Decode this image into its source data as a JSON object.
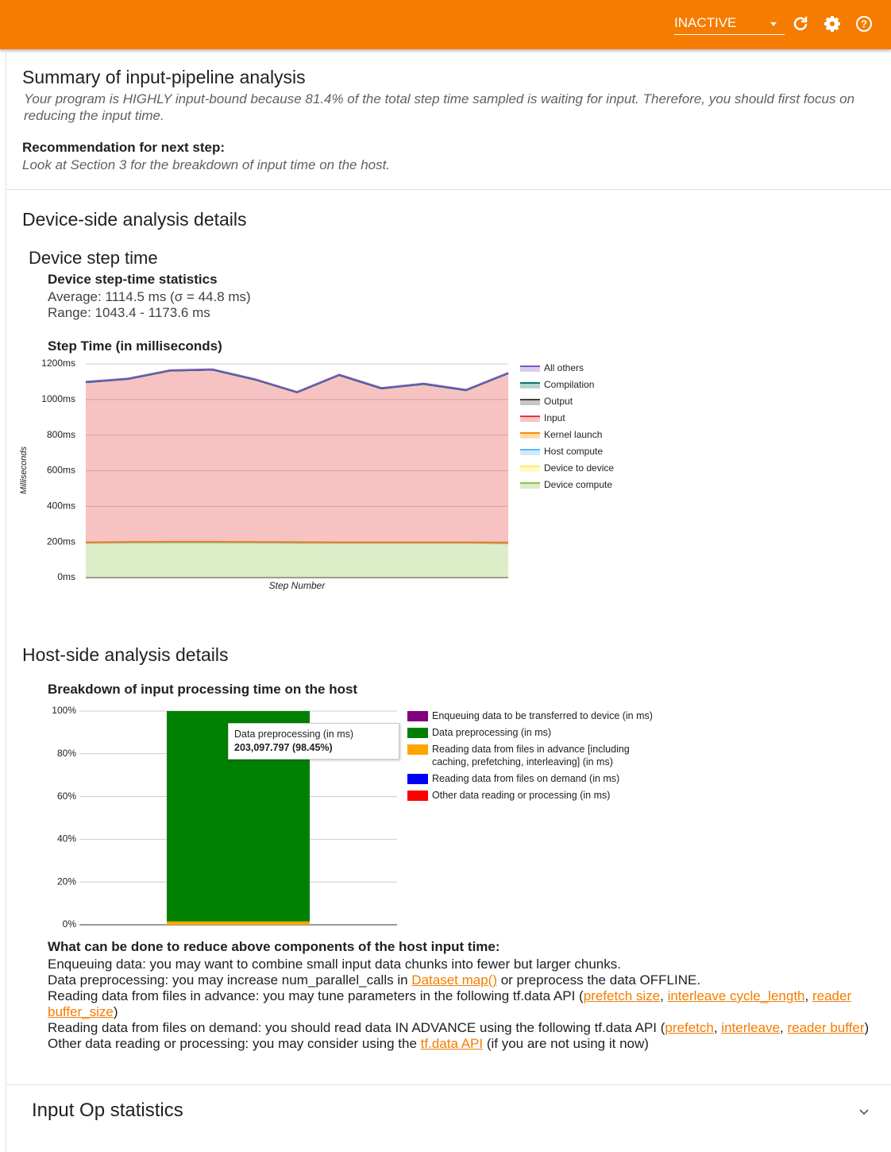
{
  "toolbar": {
    "status": "INACTIVE"
  },
  "summary": {
    "title": "Summary of input-pipeline analysis",
    "text": "Your program is HIGHLY input-bound because 81.4% of the total step time sampled is waiting for input. Therefore, you should first focus on reducing the input time.",
    "recommendation_label": "Recommendation for next step:",
    "recommendation": "Look at Section 3 for the breakdown of input time on the host."
  },
  "device": {
    "title": "Device-side analysis details",
    "subtitle": "Device step time",
    "stats_title": "Device step-time statistics",
    "average": "Average: 1114.5 ms (σ = 44.8 ms)",
    "range": "Range: 1043.4 - 1173.6 ms"
  },
  "host": {
    "title": "Host-side analysis details",
    "advice_title": "What can be done to reduce above components of the host input time:",
    "advice": [
      [
        {
          "text": "Enqueuing data: you may want to combine small input data chunks into fewer but larger chunks."
        }
      ],
      [
        {
          "text": "Data preprocessing: you may increase num_parallel_calls in "
        },
        {
          "link": "Dataset map()"
        },
        {
          "text": " or preprocess the data OFFLINE."
        }
      ],
      [
        {
          "text": "Reading data from files in advance: you may tune parameters in the following tf.data API ("
        },
        {
          "link": "prefetch size"
        },
        {
          "text": ", "
        },
        {
          "link": "interleave cycle_length"
        },
        {
          "text": ", "
        },
        {
          "link": "reader buffer_size"
        },
        {
          "text": ")"
        }
      ],
      [
        {
          "text": "Reading data from files on demand: you should read data IN ADVANCE using the following tf.data API ("
        },
        {
          "link": "prefetch"
        },
        {
          "text": ", "
        },
        {
          "link": "interleave"
        },
        {
          "text": ", "
        },
        {
          "link": "reader buffer"
        },
        {
          "text": ")"
        }
      ],
      [
        {
          "text": "Other data reading or processing: you may consider using the "
        },
        {
          "link": "tf.data API"
        },
        {
          "text": " (if you are not using it now)"
        }
      ]
    ]
  },
  "footer": {
    "title": "Input Op statistics"
  },
  "chart_data": [
    {
      "type": "area",
      "stacked": true,
      "title": "Step Time (in milliseconds)",
      "y_label": "Milliseconds",
      "x_label": "Step Number",
      "categories": [
        null,
        null,
        null,
        null,
        null,
        null,
        null,
        null,
        null,
        null,
        null
      ],
      "ylim": [
        0,
        1200
      ],
      "yticks": [
        {
          "value": 0,
          "label": "0ms"
        },
        {
          "value": 200,
          "label": "200ms"
        },
        {
          "value": 400,
          "label": "400ms"
        },
        {
          "value": 600,
          "label": "600ms"
        },
        {
          "value": 800,
          "label": "800ms"
        },
        {
          "value": 1000,
          "label": "1000ms"
        },
        {
          "value": 1200,
          "label": "1200ms"
        }
      ],
      "grid": true,
      "legend": "right",
      "series": [
        {
          "name": "All others",
          "color": "#7e57c2",
          "values": [
            3,
            3,
            3,
            3,
            3,
            3,
            3,
            3,
            3,
            3,
            3
          ]
        },
        {
          "name": "Compilation",
          "color": "#00796b",
          "values": [
            0,
            0,
            0,
            0,
            0,
            0,
            0,
            0,
            0,
            0,
            0
          ]
        },
        {
          "name": "Output",
          "color": "#424242",
          "values": [
            0,
            0,
            0,
            0,
            0,
            0,
            0,
            0,
            0,
            0,
            0
          ]
        },
        {
          "name": "Input",
          "color": "#e53935",
          "values": [
            899,
            915,
            961,
            966,
            912,
            841,
            939,
            864,
            889,
            854,
            951
          ]
        },
        {
          "name": "Kernel launch",
          "color": "#fb8c00",
          "values": [
            3,
            3,
            3,
            3,
            3,
            3,
            3,
            3,
            3,
            3,
            3
          ]
        },
        {
          "name": "Host compute",
          "color": "#64b5f6",
          "values": [
            0,
            0,
            0,
            0,
            0,
            0,
            0,
            0,
            0,
            0,
            0
          ]
        },
        {
          "name": "Device to device",
          "color": "#ffee58",
          "values": [
            0,
            0,
            0,
            0,
            0,
            0,
            0,
            0,
            0,
            0,
            0
          ]
        },
        {
          "name": "Device compute",
          "color": "#8bc34a",
          "values": [
            195,
            197,
            198,
            198,
            197,
            196,
            195,
            195,
            195,
            195,
            193
          ]
        }
      ]
    },
    {
      "type": "bar",
      "stacked": true,
      "title": "Breakdown of input processing time on the host",
      "categories": [
        null
      ],
      "ylim": [
        0,
        100
      ],
      "yticks": [
        {
          "value": 0,
          "label": "0%"
        },
        {
          "value": 20,
          "label": "20%"
        },
        {
          "value": 40,
          "label": "40%"
        },
        {
          "value": 60,
          "label": "60%"
        },
        {
          "value": 80,
          "label": "80%"
        },
        {
          "value": 100,
          "label": "100%"
        }
      ],
      "grid": true,
      "legend": "right",
      "series": [
        {
          "name": "Enqueuing data to be transferred to device (in ms)",
          "color": "#800080",
          "values": [
            0
          ]
        },
        {
          "name": "Data preprocessing (in ms)",
          "color": "#008000",
          "values": [
            98.45
          ],
          "value_labels": [
            "203,097.797 (98.45%)"
          ]
        },
        {
          "name": "Reading data from files in advance [including caching, prefetching, interleaving] (in ms)",
          "color": "#ffa500",
          "values": [
            1.55
          ]
        },
        {
          "name": "Reading data from files on demand (in ms)",
          "color": "#0000ff",
          "values": [
            0
          ]
        },
        {
          "name": "Other data reading or processing (in ms)",
          "color": "#ff0000",
          "values": [
            0
          ]
        }
      ]
    }
  ]
}
